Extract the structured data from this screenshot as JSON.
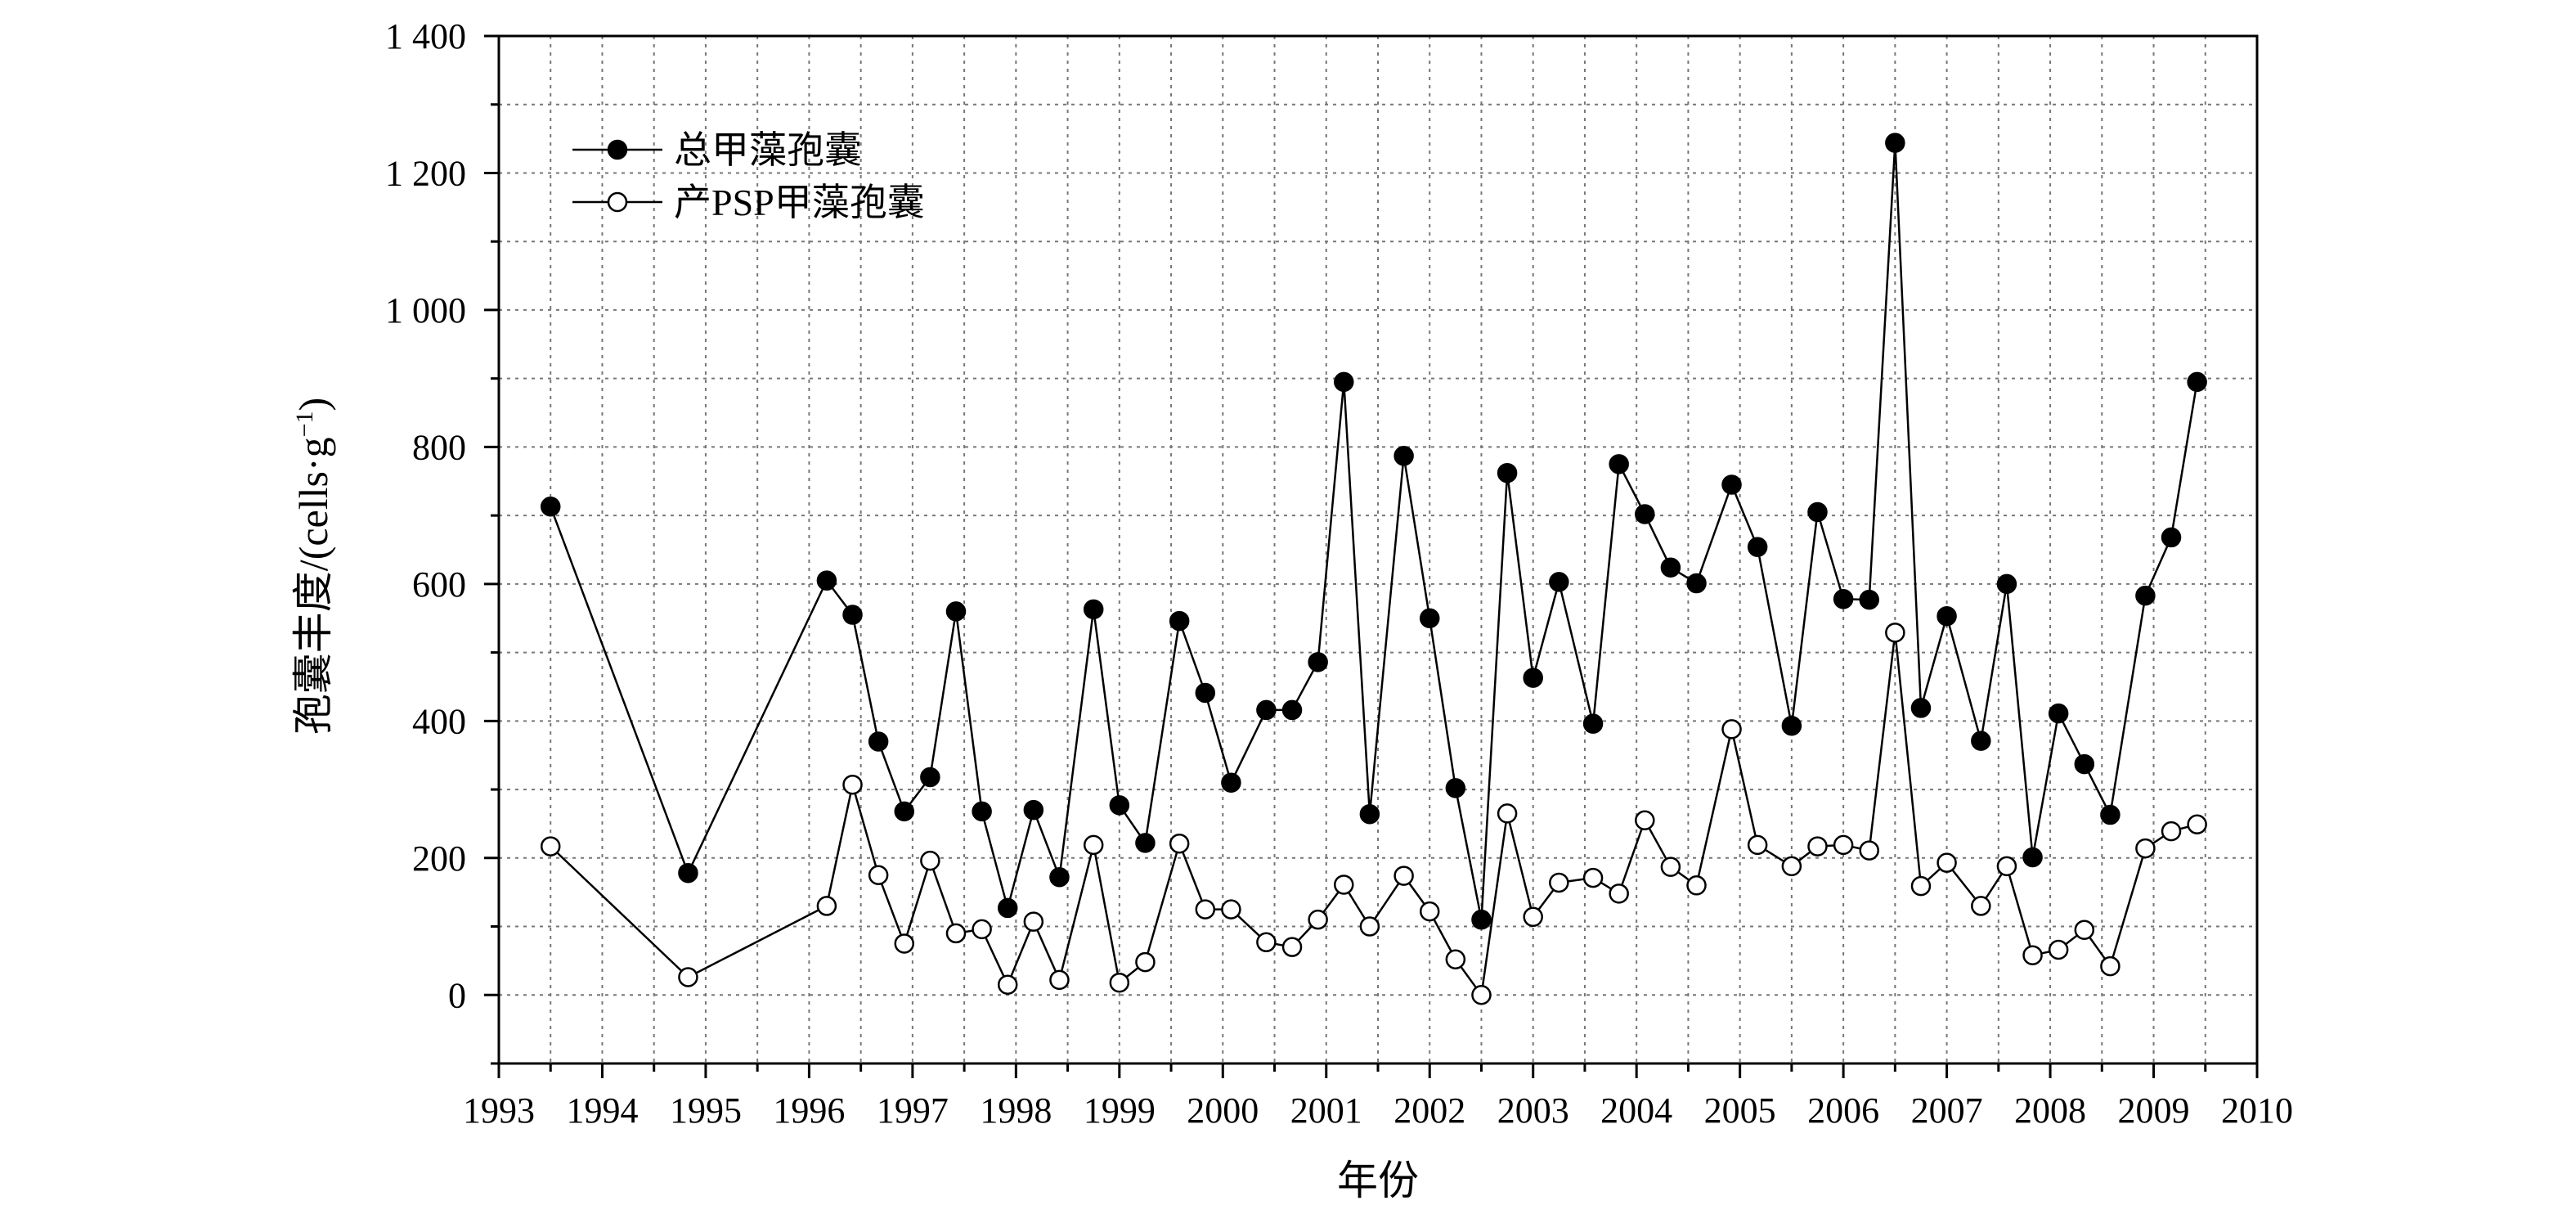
{
  "chart_data": {
    "type": "line",
    "title": "",
    "xlabel": "年份",
    "ylabel": "孢囊丰度/(cells·g⁻¹)",
    "ylabel_main": "孢囊丰度/(cells·g",
    "ylabel_sup": "−1",
    "ylabel_close": ")",
    "xlim": [
      1993,
      2010
    ],
    "ylim": [
      -100,
      1400
    ],
    "x_ticks": [
      1993,
      1994,
      1995,
      1996,
      1997,
      1998,
      1999,
      2000,
      2001,
      2002,
      2003,
      2004,
      2005,
      2006,
      2007,
      2008,
      2009,
      2010
    ],
    "x_tick_labels": [
      "1993",
      "1994",
      "1995",
      "1996",
      "1997",
      "1998",
      "1999",
      "2000",
      "2001",
      "2002",
      "2003",
      "2004",
      "2005",
      "2006",
      "2007",
      "2008",
      "2009",
      "2010"
    ],
    "y_ticks": [
      0,
      200,
      400,
      600,
      800,
      1000,
      1200,
      1400
    ],
    "y_tick_labels": [
      "0",
      "200",
      "400",
      "600",
      "800",
      "1 000",
      "1 200",
      "1 400"
    ],
    "grid": true,
    "legend_position": "top-left",
    "series": [
      {
        "name": "总甲藻孢囊",
        "marker": "filled-circle",
        "x": [
          1993.5,
          1994.83,
          1996.17,
          1996.42,
          1996.67,
          1996.92,
          1997.17,
          1997.42,
          1997.67,
          1997.92,
          1998.17,
          1998.42,
          1998.75,
          1999.0,
          1999.25,
          1999.58,
          1999.83,
          2000.08,
          2000.42,
          2000.67,
          2000.92,
          2001.17,
          2001.42,
          2001.75,
          2002.0,
          2002.25,
          2002.5,
          2002.75,
          2003.0,
          2003.25,
          2003.58,
          2003.83,
          2004.08,
          2004.33,
          2004.58,
          2004.92,
          2005.17,
          2005.5,
          2005.75,
          2006.0,
          2006.25,
          2006.5,
          2006.75,
          2007.0,
          2007.33,
          2007.58,
          2007.83,
          2008.08,
          2008.33,
          2008.58,
          2008.92,
          2009.17,
          2009.42
        ],
        "values": [
          713,
          178,
          605,
          555,
          370,
          268,
          318,
          560,
          268,
          127,
          270,
          172,
          563,
          277,
          222,
          546,
          441,
          310,
          416,
          416,
          486,
          895,
          264,
          787,
          550,
          302,
          110,
          762,
          463,
          603,
          396,
          775,
          702,
          624,
          601,
          745,
          654,
          393,
          705,
          578,
          577,
          1244,
          419,
          553,
          371,
          600,
          201,
          411,
          337,
          263,
          583,
          668,
          895
        ]
      },
      {
        "name": "产PSP甲藻孢囊",
        "marker": "open-circle",
        "x": [
          1993.5,
          1994.83,
          1996.17,
          1996.42,
          1996.67,
          1996.92,
          1997.17,
          1997.42,
          1997.67,
          1997.92,
          1998.17,
          1998.42,
          1998.75,
          1999.0,
          1999.25,
          1999.58,
          1999.83,
          2000.08,
          2000.42,
          2000.67,
          2000.92,
          2001.17,
          2001.42,
          2001.75,
          2002.0,
          2002.25,
          2002.5,
          2002.75,
          2003.0,
          2003.25,
          2003.58,
          2003.83,
          2004.08,
          2004.33,
          2004.58,
          2004.92,
          2005.17,
          2005.5,
          2005.75,
          2006.0,
          2006.25,
          2006.5,
          2006.75,
          2007.0,
          2007.33,
          2007.58,
          2007.83,
          2008.08,
          2008.33,
          2008.58,
          2008.92,
          2009.17,
          2009.42
        ],
        "values": [
          217,
          26,
          130,
          307,
          175,
          75,
          196,
          90,
          96,
          15,
          107,
          22,
          219,
          18,
          48,
          221,
          125,
          125,
          77,
          70,
          110,
          161,
          100,
          174,
          122,
          52,
          0,
          265,
          114,
          164,
          171,
          148,
          255,
          187,
          160,
          388,
          219,
          188,
          217,
          219,
          211,
          529,
          159,
          193,
          130,
          188,
          58,
          66,
          95,
          42,
          214,
          239,
          249
        ]
      }
    ]
  }
}
